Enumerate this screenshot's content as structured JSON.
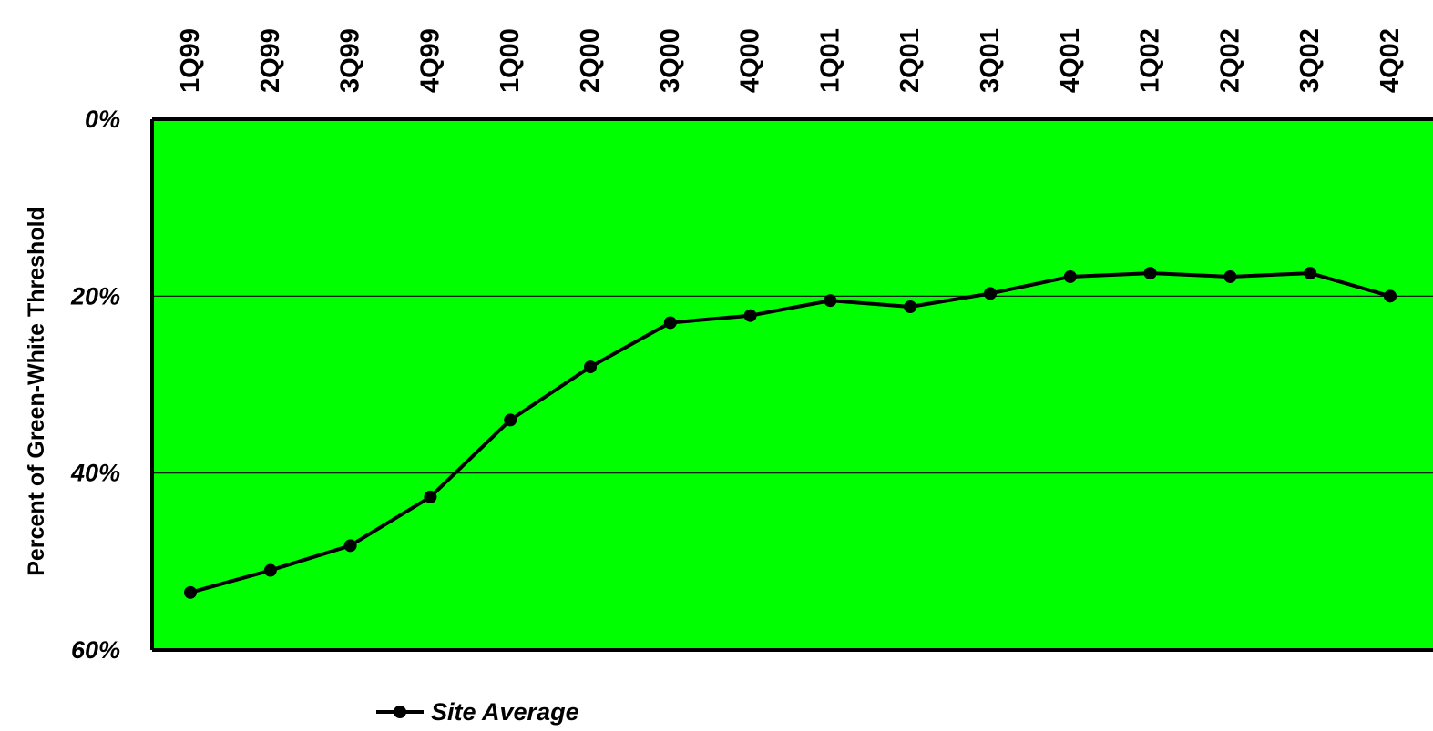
{
  "chart_data": {
    "type": "line",
    "title": "",
    "xlabel": "",
    "ylabel": "Percent of Green-White Threshold",
    "categories": [
      "1Q99",
      "2Q99",
      "3Q99",
      "4Q99",
      "1Q00",
      "2Q00",
      "3Q00",
      "4Q00",
      "1Q01",
      "2Q01",
      "3Q01",
      "4Q01",
      "1Q02",
      "2Q02",
      "3Q02",
      "4Q02"
    ],
    "y_ticks": [
      "0%",
      "20%",
      "40%",
      "60%"
    ],
    "y_tick_values": [
      0,
      20,
      40,
      60
    ],
    "ylim": [
      0,
      60
    ],
    "y_axis_inverted": true,
    "x_axis_position": "top",
    "plot_background": "#00ff00",
    "grid": true,
    "legend_position": "bottom-center",
    "series": [
      {
        "name": "Site Average",
        "color": "#000000",
        "marker": "circle",
        "values": [
          53.5,
          51.0,
          48.2,
          42.7,
          34.0,
          28.0,
          23.0,
          22.2,
          20.5,
          21.2,
          19.7,
          17.8,
          17.4,
          17.8,
          17.4,
          20.0
        ]
      }
    ]
  }
}
